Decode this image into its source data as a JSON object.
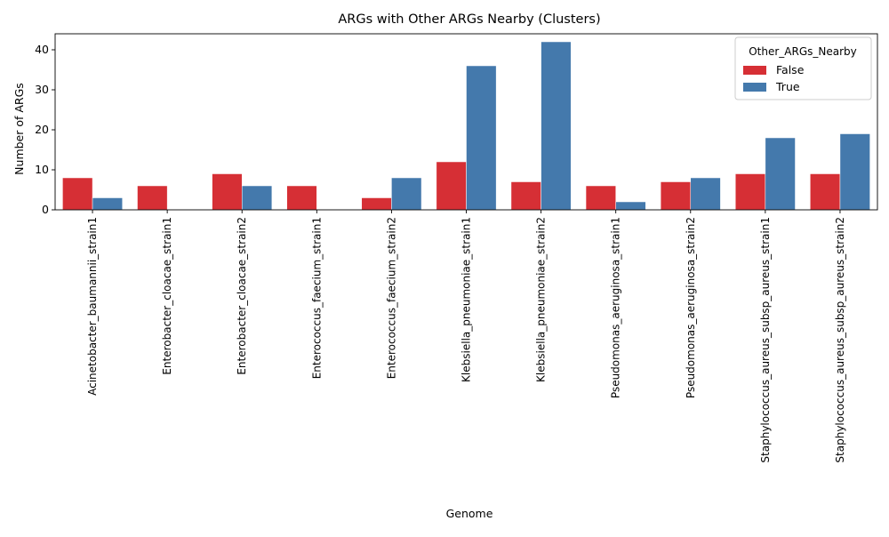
{
  "chart_data": {
    "type": "bar",
    "title": "ARGs with Other ARGs Nearby (Clusters)",
    "xlabel": "Genome",
    "ylabel": "Number of ARGs",
    "ylim": [
      0,
      44
    ],
    "yticks": [
      0,
      10,
      20,
      30,
      40
    ],
    "grid": false,
    "legend": {
      "title": "Other_ARGs_Nearby",
      "placement": "top-right"
    },
    "categories": [
      "Acinetobacter_baumannii_strain1",
      "Enterobacter_cloacae_strain1",
      "Enterobacter_cloacae_strain2",
      "Enterococcus_faecium_strain1",
      "Enterococcus_faecium_strain2",
      "Klebsiella_pneumoniae_strain1",
      "Klebsiella_pneumoniae_strain2",
      "Pseudomonas_aeruginosa_strain1",
      "Pseudomonas_aeruginosa_strain2",
      "Staphylococcus_aureus_subsp_aureus_strain1",
      "Staphylococcus_aureus_subsp_aureus_strain2"
    ],
    "series": [
      {
        "name": "False",
        "color": "#d62f35",
        "values": [
          8,
          6,
          9,
          6,
          3,
          12,
          7,
          6,
          7,
          9,
          9
        ]
      },
      {
        "name": "True",
        "color": "#4479ac",
        "values": [
          3,
          0,
          6,
          0,
          8,
          36,
          42,
          2,
          8,
          18,
          19
        ]
      }
    ]
  }
}
